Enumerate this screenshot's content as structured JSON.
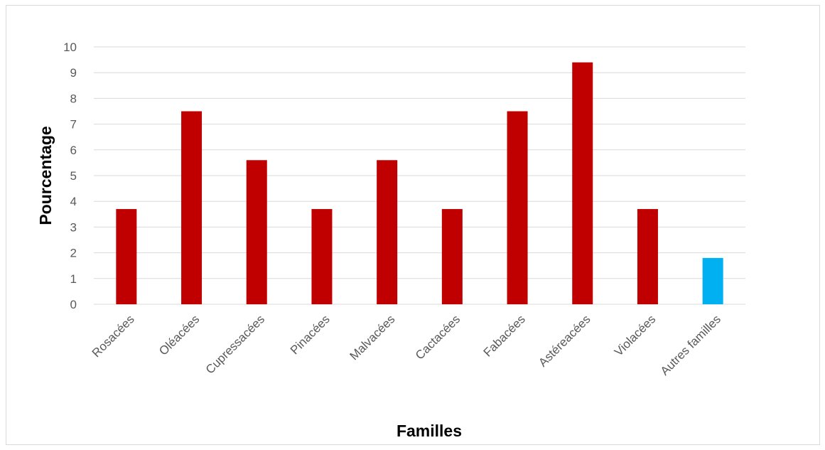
{
  "chart_data": {
    "type": "bar",
    "title": "",
    "xlabel": "Familles",
    "ylabel": "Pourcentage",
    "ylim": [
      0,
      10
    ],
    "yticks": [
      0,
      1,
      2,
      3,
      4,
      5,
      6,
      7,
      8,
      9,
      10
    ],
    "grid": true,
    "legend": "none",
    "categories": [
      "Rosacées",
      "Oléacées",
      "Cupressacées",
      "Pinacées",
      "Malvacées",
      "Cactacées",
      "Fabacées",
      "Astéreacées",
      "Violacées",
      "Autres familles"
    ],
    "values": [
      3.7,
      7.5,
      5.6,
      3.7,
      5.6,
      3.7,
      7.5,
      9.4,
      3.7,
      1.8
    ],
    "colors": [
      "#c00000",
      "#c00000",
      "#c00000",
      "#c00000",
      "#c00000",
      "#c00000",
      "#c00000",
      "#c00000",
      "#c00000",
      "#00b0f0"
    ]
  }
}
